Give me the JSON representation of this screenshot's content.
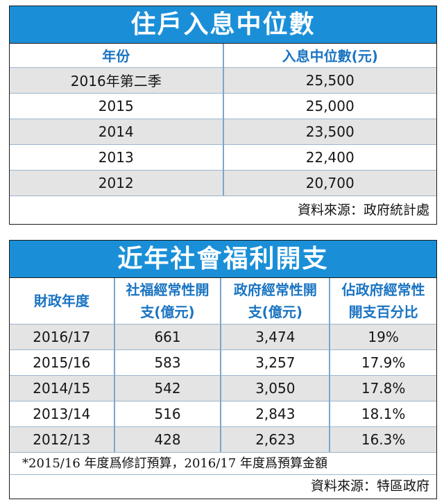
{
  "table1": {
    "title": "住戶入息中位數",
    "headers": [
      "年份",
      "入息中位數(元)"
    ],
    "rows": [
      [
        "2016年第二季",
        "25,500"
      ],
      [
        "2015",
        "25,000"
      ],
      [
        "2014",
        "23,500"
      ],
      [
        "2013",
        "22,400"
      ],
      [
        "2012",
        "20,700"
      ]
    ],
    "source": "資料來源：政府統計處"
  },
  "table2": {
    "title": "近年社會福利開支",
    "headers": [
      [
        "財政年度"
      ],
      [
        "社福經常性開",
        "支(億元)"
      ],
      [
        "政府經常性開",
        "支(億元)"
      ],
      [
        "佔政府經常性",
        "開支百分比"
      ]
    ],
    "rows": [
      [
        "2016/17",
        "661",
        "3,474",
        "19%"
      ],
      [
        "2015/16",
        "583",
        "3,257",
        "17.9%"
      ],
      [
        "2014/15",
        "542",
        "3,050",
        "17.8%"
      ],
      [
        "2013/14",
        "516",
        "2,843",
        "18.1%"
      ],
      [
        "2012/13",
        "428",
        "2,623",
        "16.3%"
      ]
    ],
    "footnote": "*2015/16 年度爲修訂預算，2016/17 年度爲預算金額",
    "source": "資料來源：特區政府"
  }
}
